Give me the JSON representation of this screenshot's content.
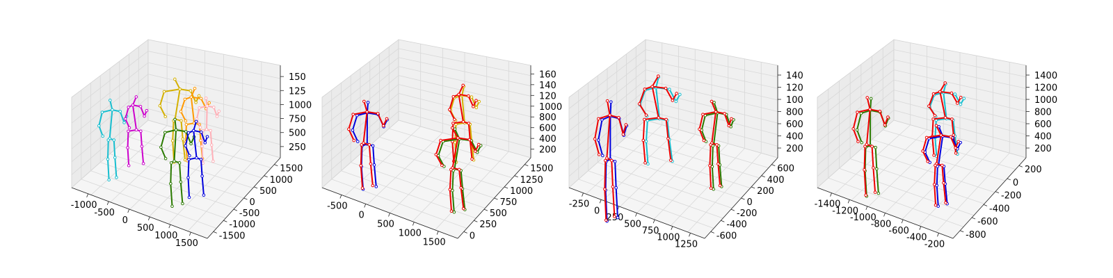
{
  "chart_data": [
    {
      "type": "scatter",
      "subtype": "3d-skeleton",
      "title": "",
      "axes": {
        "x_ticks": [
          "-1000",
          "-500",
          "0",
          "500",
          "1000",
          "1500"
        ],
        "y_ticks": [
          "-1500",
          "-1000",
          "-500",
          "0",
          "500",
          "1000",
          "1500"
        ],
        "z_ticks": [
          "250",
          "500",
          "750",
          "1000",
          "1250",
          "1500"
        ],
        "z_tick_display": [
          "250",
          "500",
          "750",
          "1000",
          "125",
          "150"
        ]
      },
      "skeletons": [
        {
          "color": "#17becf",
          "paired": null,
          "pos": [
            0.16,
            0.44
          ],
          "h": 0.44,
          "w": 0.08
        },
        {
          "color": "#cc00cc",
          "paired": null,
          "pos": [
            0.28,
            0.4
          ],
          "h": 0.38,
          "w": 0.08
        },
        {
          "color": "#d4b000",
          "paired": null,
          "pos": [
            0.5,
            0.33
          ],
          "h": 0.46,
          "w": 0.11
        },
        {
          "color": "#ff9900",
          "paired": null,
          "pos": [
            0.58,
            0.36
          ],
          "h": 0.4,
          "w": 0.1
        },
        {
          "color": "#ffb0b8",
          "paired": null,
          "pos": [
            0.65,
            0.4
          ],
          "h": 0.36,
          "w": 0.07
        },
        {
          "color": "#2a7a00",
          "paired": null,
          "pos": [
            0.49,
            0.56
          ],
          "h": 0.48,
          "w": 0.1
        },
        {
          "color": "#0000dd",
          "paired": null,
          "pos": [
            0.59,
            0.55
          ],
          "h": 0.42,
          "w": 0.08
        }
      ]
    },
    {
      "type": "scatter",
      "subtype": "3d-skeleton",
      "title": "",
      "axes": {
        "x_ticks": [
          "-500",
          "0",
          "500",
          "1000",
          "1500"
        ],
        "y_ticks": [
          "0",
          "250",
          "500",
          "750",
          "1000",
          "1250",
          "1500"
        ],
        "z_ticks": [
          "200",
          "400",
          "600",
          "800",
          "1000",
          "1200",
          "1400",
          "1600"
        ],
        "z_tick_display": [
          "200",
          "400",
          "600",
          "800",
          "1000",
          "120",
          "140",
          "160"
        ]
      },
      "skeletons": [
        {
          "color": "#ee0000",
          "paired": "#0000dd",
          "pos": [
            0.18,
            0.46
          ],
          "h": 0.48,
          "w": 0.11
        },
        {
          "color": "#ee0000",
          "paired": "#d4b000",
          "pos": [
            0.67,
            0.35
          ],
          "h": 0.42,
          "w": 0.1
        },
        {
          "color": "#ee0000",
          "paired": "#2a7a00",
          "pos": [
            0.64,
            0.6
          ],
          "h": 0.46,
          "w": 0.12
        }
      ]
    },
    {
      "type": "scatter",
      "subtype": "3d-skeleton",
      "title": "",
      "axes": {
        "x_ticks": [
          "-250",
          "0",
          "250",
          "500",
          "750",
          "1000",
          "1250"
        ],
        "y_ticks": [
          "-600",
          "-400",
          "-200",
          "0",
          "200",
          "400",
          "600"
        ],
        "z_ticks": [
          "200",
          "400",
          "600",
          "800",
          "1000",
          "1200",
          "1400"
        ],
        "z_tick_display": [
          "200",
          "400",
          "600",
          "800",
          "100",
          "120",
          "140"
        ]
      },
      "skeletons": [
        {
          "color": "#ee0000",
          "paired": "#0000dd",
          "pos": [
            0.16,
            0.52
          ],
          "h": 0.66,
          "w": 0.09
        },
        {
          "color": "#ee0000",
          "paired": "#17becf",
          "pos": [
            0.4,
            0.32
          ],
          "h": 0.48,
          "w": 0.14
        },
        {
          "color": "#ee0000",
          "paired": "#2a7a00",
          "pos": [
            0.7,
            0.46
          ],
          "h": 0.48,
          "w": 0.09
        }
      ]
    },
    {
      "type": "scatter",
      "subtype": "3d-skeleton",
      "title": "",
      "axes": {
        "x_ticks": [
          "-1400",
          "-1200",
          "-1000",
          "-800",
          "-600",
          "-400",
          "-200"
        ],
        "y_ticks": [
          "-800",
          "-600",
          "-400",
          "-200",
          "0",
          "200"
        ],
        "z_ticks": [
          "200",
          "400",
          "600",
          "800",
          "1000",
          "1200",
          "1400"
        ],
        "z_tick_display": [
          "200",
          "400",
          "600",
          "800",
          "1000",
          "1200",
          "1400"
        ]
      },
      "skeletons": [
        {
          "color": "#ee0000",
          "paired": "#2a7a00",
          "pos": [
            0.22,
            0.46
          ],
          "h": 0.54,
          "w": 0.1
        },
        {
          "color": "#ee0000",
          "paired": "#17becf",
          "pos": [
            0.6,
            0.33
          ],
          "h": 0.4,
          "w": 0.12
        },
        {
          "color": "#ee0000",
          "paired": "#0000dd",
          "pos": [
            0.58,
            0.58
          ],
          "h": 0.44,
          "w": 0.1
        }
      ]
    }
  ]
}
